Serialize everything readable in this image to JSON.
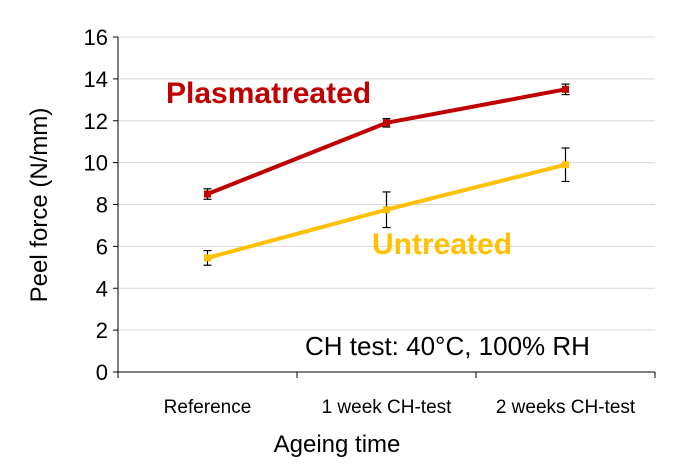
{
  "chart_data": {
    "type": "line",
    "categories": [
      "Reference",
      "1 week CH-test",
      "2 weeks CH-test"
    ],
    "series": [
      {
        "name": "Plasmatreated",
        "values": [
          8.5,
          11.9,
          13.5
        ],
        "errors": [
          0.25,
          0.2,
          0.25
        ],
        "color": "#C00000"
      },
      {
        "name": "Untreated",
        "values": [
          5.45,
          7.75,
          9.9
        ],
        "errors": [
          0.35,
          0.85,
          0.8
        ],
        "color": "#FFC000"
      }
    ],
    "xlabel": "Ageing time",
    "ylabel": "Peel force (N/mm)",
    "ylim": [
      0,
      16
    ],
    "yticks": [
      0,
      2,
      4,
      6,
      8,
      10,
      12,
      14,
      16
    ],
    "grid": true,
    "annotation": "CH test: 40°C, 100% RH",
    "axis_color": "#000000",
    "grid_color": "#D9D9D9"
  }
}
